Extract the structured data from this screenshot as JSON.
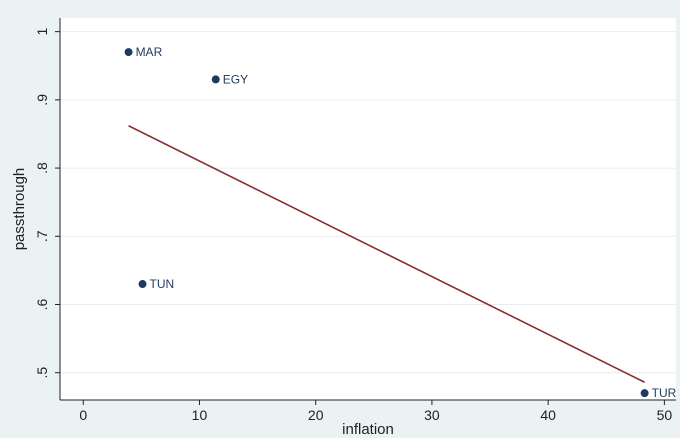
{
  "chart_data": {
    "type": "scatter",
    "title": "",
    "xlabel": "inflation",
    "ylabel": "passthrough",
    "xlim": [
      -2,
      51
    ],
    "ylim": [
      0.46,
      1.02
    ],
    "x_ticks": [
      0,
      10,
      20,
      30,
      40,
      50
    ],
    "y_ticks": [
      0.5,
      0.6,
      0.7,
      0.8,
      0.9,
      1
    ],
    "y_tick_labels": [
      ".5",
      ".6",
      ".7",
      ".8",
      ".9",
      "1"
    ],
    "grid": true,
    "points": [
      {
        "label": "MAR",
        "x": 3.9,
        "y": 0.97
      },
      {
        "label": "EGY",
        "x": 11.4,
        "y": 0.93
      },
      {
        "label": "TUN",
        "x": 5.1,
        "y": 0.63
      },
      {
        "label": "TUR",
        "x": 48.3,
        "y": 0.47
      }
    ],
    "fit_line": {
      "x": [
        3.9,
        48.3
      ],
      "y": [
        0.862,
        0.486
      ]
    },
    "colors": {
      "point": "#1e3a5f",
      "fit_line": "#8b2a2a",
      "plot_bg": "#ffffff",
      "outer_bg": "#eaf2f3",
      "grid": "#e6eef0"
    }
  }
}
